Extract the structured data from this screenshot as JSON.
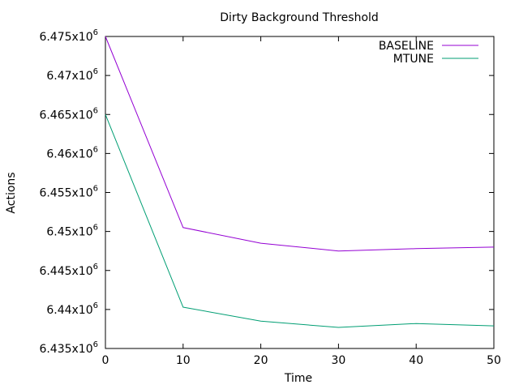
{
  "chart_data": {
    "type": "line",
    "title": "Dirty Background Threshold",
    "xlabel": "Time",
    "ylabel": "Actions",
    "x": [
      0,
      10,
      20,
      30,
      40,
      50
    ],
    "xlim": [
      0,
      50
    ],
    "ylim": [
      6435000,
      6475000
    ],
    "x_ticks": [
      "0",
      "10",
      "20",
      "30",
      "40",
      "50"
    ],
    "y_ticks": [
      {
        "value": 6435000,
        "mantissa": "6.435x10",
        "exp": "6"
      },
      {
        "value": 6440000,
        "mantissa": "6.44x10",
        "exp": "6"
      },
      {
        "value": 6445000,
        "mantissa": "6.445x10",
        "exp": "6"
      },
      {
        "value": 6450000,
        "mantissa": "6.45x10",
        "exp": "6"
      },
      {
        "value": 6455000,
        "mantissa": "6.455x10",
        "exp": "6"
      },
      {
        "value": 6460000,
        "mantissa": "6.46x10",
        "exp": "6"
      },
      {
        "value": 6465000,
        "mantissa": "6.465x10",
        "exp": "6"
      },
      {
        "value": 6470000,
        "mantissa": "6.47x10",
        "exp": "6"
      },
      {
        "value": 6475000,
        "mantissa": "6.475x10",
        "exp": "6"
      }
    ],
    "grid": false,
    "legend_position": "top-right",
    "series": [
      {
        "name": "BASELINE",
        "color": "#9400d3",
        "values": [
          6475000,
          6450500,
          6448500,
          6447500,
          6447800,
          6448000
        ]
      },
      {
        "name": "MTUNE",
        "color": "#009e73",
        "values": [
          6465000,
          6440300,
          6438500,
          6437700,
          6438200,
          6437900
        ]
      }
    ]
  }
}
